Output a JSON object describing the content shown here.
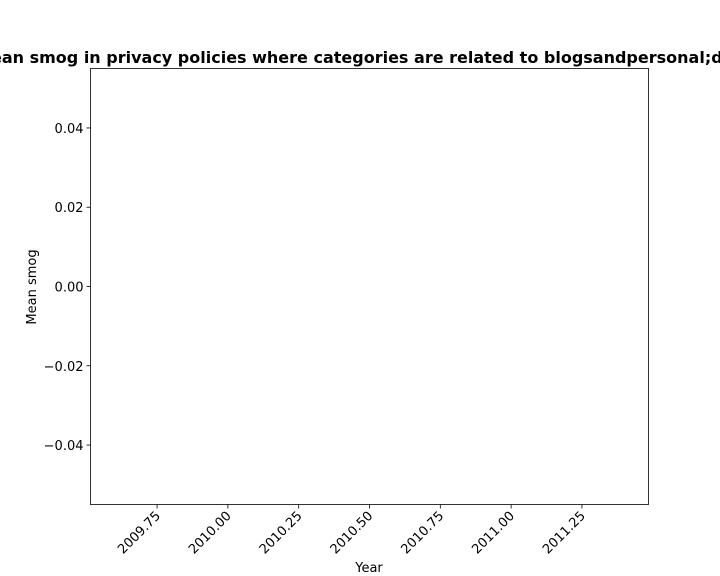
{
  "chart_data": {
    "type": "line",
    "title": "Mean smog in privacy policies where categories are related to blogsandpersonal;drugs",
    "xlabel": "Year",
    "ylabel": "Mean smog",
    "x": [],
    "series": [
      {
        "values": []
      }
    ],
    "xlim": [
      2009.515,
      2011.485
    ],
    "ylim": [
      -0.055,
      0.055
    ],
    "xticks": [
      2009.75,
      2010.0,
      2010.25,
      2010.5,
      2010.75,
      2011.0,
      2011.25
    ],
    "xtick_labels": [
      "2009.75",
      "2010.00",
      "2010.25",
      "2010.50",
      "2010.75",
      "2011.00",
      "2011.25"
    ],
    "yticks": [
      -0.04,
      -0.02,
      0.0,
      0.02,
      0.04
    ],
    "ytick_labels": [
      "−0.04",
      "−0.02",
      "0.00",
      "0.02",
      "0.04"
    ],
    "grid": false,
    "legend": "none",
    "colors": {
      "axes": "#000000",
      "background": "#ffffff"
    }
  }
}
